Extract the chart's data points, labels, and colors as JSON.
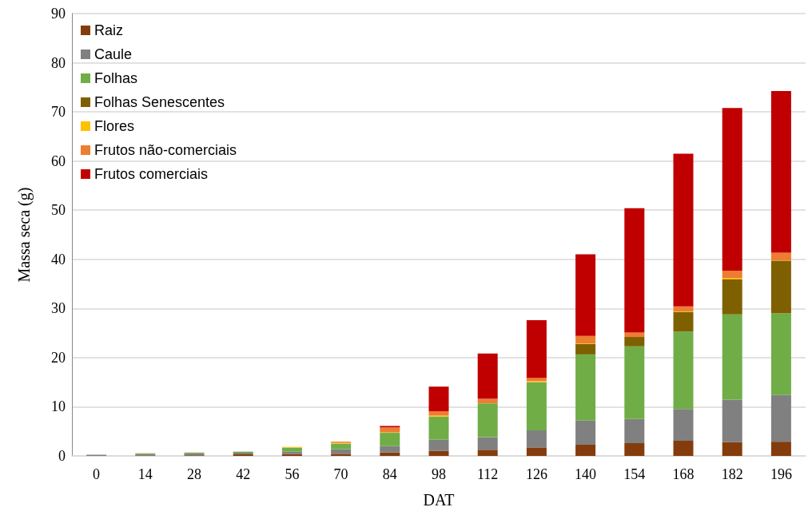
{
  "chart_data": {
    "type": "bar",
    "stacked": true,
    "xlabel": "DAT",
    "ylabel": "Massa seca (g)",
    "categories": [
      "0",
      "14",
      "28",
      "42",
      "56",
      "70",
      "84",
      "98",
      "112",
      "126",
      "140",
      "154",
      "168",
      "182",
      "196"
    ],
    "ylim": [
      0,
      90
    ],
    "yticks": [
      0,
      10,
      20,
      30,
      40,
      50,
      60,
      70,
      80,
      90
    ],
    "grid": "y",
    "legend": "top left",
    "series": [
      {
        "name": "Raiz",
        "color": "#843c0c",
        "values": [
          null,
          0.1,
          0.12,
          0.32,
          0.38,
          0.43,
          0.7,
          1.0,
          1.25,
          1.73,
          2.28,
          2.6,
          3.1,
          2.8,
          2.9
        ]
      },
      {
        "name": "Caule",
        "color": "#808080",
        "values": [
          0.25,
          0.28,
          0.42,
          0.33,
          0.49,
          0.92,
          1.3,
          2.3,
          2.55,
          3.47,
          4.92,
          4.9,
          6.45,
          8.65,
          9.5
        ]
      },
      {
        "name": "Folhas",
        "color": "#70ad47",
        "values": [
          0,
          0.16,
          0.16,
          0.22,
          0.81,
          1.14,
          2.7,
          4.7,
          6.9,
          9.8,
          13.45,
          14.8,
          15.75,
          17.35,
          16.65
        ]
      },
      {
        "name": "Folhas Senescentes",
        "color": "#7f6000",
        "values": [
          0,
          0,
          0,
          0,
          0,
          0,
          0,
          0,
          0,
          0,
          2.15,
          1.9,
          4.0,
          7.1,
          10.65
        ]
      },
      {
        "name": "Flores",
        "color": "#ffc000",
        "values": [
          0,
          0,
          0,
          0,
          0.16,
          0.16,
          0.1,
          0.2,
          null,
          0.2,
          0.1,
          null,
          0.1,
          0.3,
          0.05
        ]
      },
      {
        "name": "Frutos não-comerciais",
        "color": "#ed7d31",
        "values": [
          0,
          0,
          0,
          0,
          0,
          0.25,
          1.0,
          0.9,
          0.9,
          0.7,
          1.5,
          0.9,
          1.0,
          1.5,
          1.6
        ]
      },
      {
        "name": "Frutos comerciais",
        "color": "#c00000",
        "values": [
          0,
          0,
          0,
          0,
          0,
          0,
          0.3,
          5.0,
          9.25,
          11.7,
          16.6,
          25.3,
          31.1,
          33.1,
          32.9
        ]
      }
    ]
  }
}
